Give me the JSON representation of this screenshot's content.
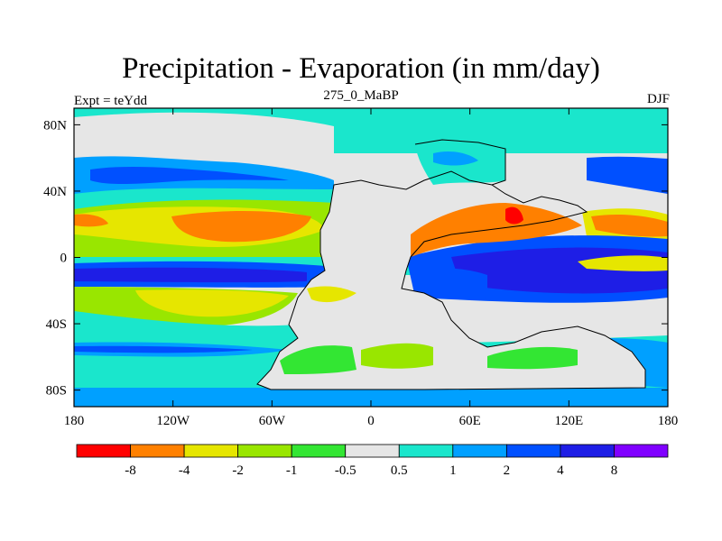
{
  "title": "Precipitation - Evaporation (in mm/day)",
  "subtitle_left": "Expt = teYdd",
  "subtitle_center": "275_0_MaBP",
  "subtitle_right": "DJF",
  "map": {
    "lon_range": [
      -180,
      180
    ],
    "lat_range": [
      -90,
      90
    ],
    "x_ticks": [
      {
        "lon": -180,
        "label": "180"
      },
      {
        "lon": -120,
        "label": "120W"
      },
      {
        "lon": -60,
        "label": "60W"
      },
      {
        "lon": 0,
        "label": "0"
      },
      {
        "lon": 60,
        "label": "60E"
      },
      {
        "lon": 120,
        "label": "120E"
      },
      {
        "lon": 180,
        "label": "180"
      }
    ],
    "y_ticks": [
      {
        "lat": 80,
        "label": "80N"
      },
      {
        "lat": 40,
        "label": "40N"
      },
      {
        "lat": 0,
        "label": "0"
      },
      {
        "lat": -40,
        "label": "40S"
      },
      {
        "lat": -80,
        "label": "80S"
      }
    ],
    "continent_outline": "Pangaea (land mask)"
  },
  "legend": {
    "colors": [
      "#ff0000",
      "#ff8000",
      "#e6e600",
      "#99e600",
      "#33e633",
      "#e6e6e6",
      "#1ae6cc",
      "#00a0ff",
      "#0050ff",
      "#1e1ee6",
      "#8000ff"
    ],
    "labels": [
      "-8",
      "-4",
      "-2",
      "-1",
      "-0.5",
      "0.5",
      "1",
      "2",
      "4",
      "8"
    ]
  }
}
